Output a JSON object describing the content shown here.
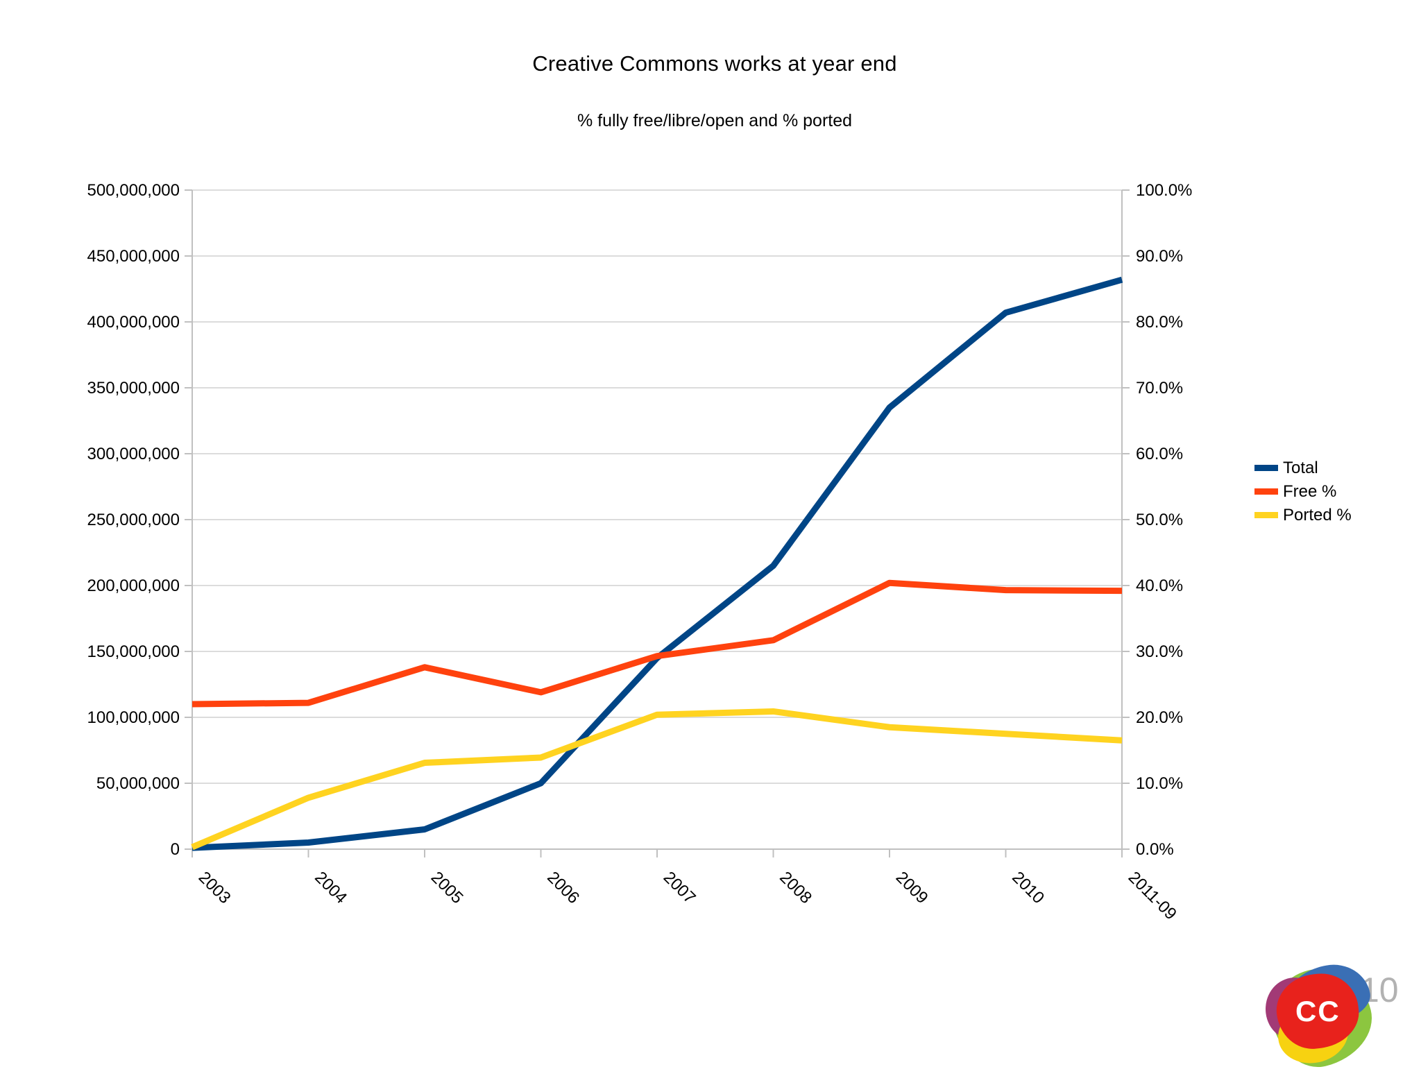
{
  "chart": {
    "title": "Creative Commons works at year end",
    "subtitle": "% fully free/libre/open and % ported"
  },
  "chart_data": {
    "type": "line",
    "categories": [
      "2003",
      "2004",
      "2005",
      "2006",
      "2007",
      "2008",
      "2009",
      "2010",
      "2011-09"
    ],
    "series": [
      {
        "name": "Total",
        "axis": "left",
        "color": "#004586",
        "values": [
          1000000,
          5000000,
          15000000,
          50000000,
          145000000,
          215000000,
          335000000,
          407000000,
          432000000
        ]
      },
      {
        "name": "Free %",
        "axis": "right",
        "color": "#ff420e",
        "values": [
          22.0,
          22.2,
          27.6,
          23.8,
          29.3,
          31.7,
          40.4,
          39.3,
          39.2
        ]
      },
      {
        "name": "Ported %",
        "axis": "right",
        "color": "#ffd320",
        "values": [
          0.3,
          7.8,
          13.1,
          13.9,
          20.4,
          20.9,
          18.5,
          17.5,
          16.5
        ]
      }
    ],
    "left_axis": {
      "min": 0,
      "max": 500000000,
      "tick_step": 50000000,
      "tick_labels": [
        "0",
        "50,000,000",
        "100,000,000",
        "150,000,000",
        "200,000,000",
        "250,000,000",
        "300,000,000",
        "350,000,000",
        "400,000,000",
        "450,000,000",
        "500,000,000"
      ]
    },
    "right_axis": {
      "min": 0,
      "max": 100,
      "tick_step": 10,
      "tick_labels": [
        "0.0%",
        "10.0%",
        "20.0%",
        "30.0%",
        "40.0%",
        "50.0%",
        "60.0%",
        "70.0%",
        "80.0%",
        "90.0%",
        "100.0%"
      ]
    },
    "grid": "horizontal",
    "legend_position": "right"
  },
  "legend": {
    "items": [
      {
        "label": "Total",
        "color": "#004586"
      },
      {
        "label": "Free %",
        "color": "#ff420e"
      },
      {
        "label": "Ported %",
        "color": "#ffd320"
      }
    ]
  },
  "footer": {
    "page_number": "10",
    "logo_text": "CC",
    "logo_colors": {
      "red": "#e8221c",
      "green": "#8cc63f",
      "blue": "#3a6fb5",
      "purple": "#a23a76",
      "yellow": "#f7d211"
    }
  },
  "style_colors": {
    "gridline": "#dcdcdc",
    "axis": "#c0c0c0",
    "text": "#000000",
    "page_number_gray": "#b2b2b2"
  }
}
